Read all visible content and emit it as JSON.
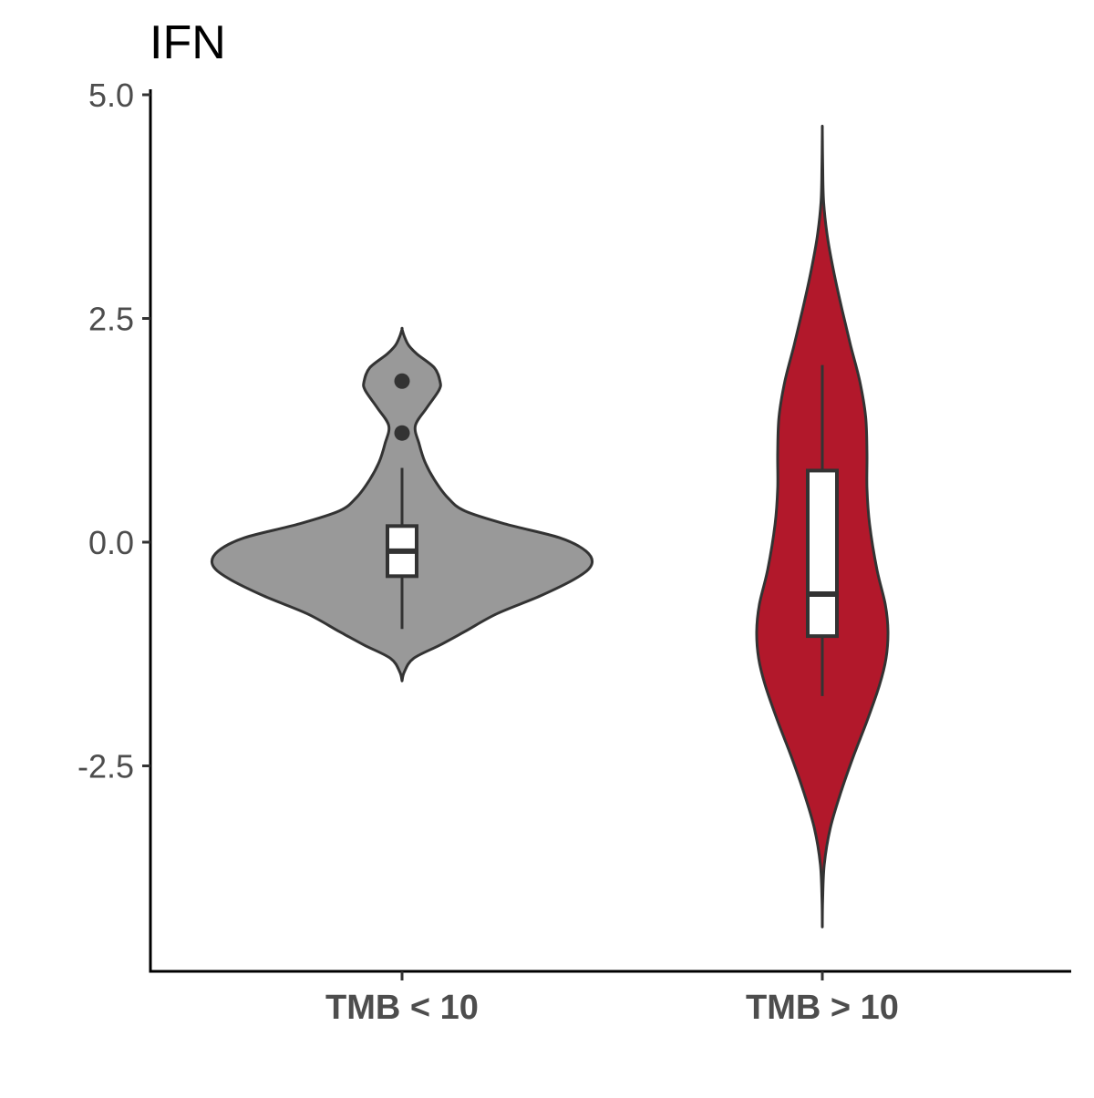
{
  "chart_data": {
    "type": "violin",
    "title": "IFN",
    "xlabel": "",
    "ylabel": "",
    "ylim": [
      -4.7,
      5.0
    ],
    "yticks": [
      5.0,
      2.5,
      0.0,
      -2.5
    ],
    "ytick_labels": [
      "5.0",
      "2.5",
      "0.0",
      "-2.5"
    ],
    "categories": [
      "TMB < 10",
      "TMB > 10"
    ],
    "grid": false,
    "legend": "none",
    "groups": [
      {
        "category": "TMB < 10",
        "fill": "#999999",
        "outline": "#333333",
        "violin_range": [
          -1.55,
          2.38
        ],
        "density_profile": [
          [
            -1.55,
            0.0
          ],
          [
            -1.45,
            0.012
          ],
          [
            -1.3,
            0.06
          ],
          [
            -1.15,
            0.2
          ],
          [
            -1.0,
            0.33
          ],
          [
            -0.8,
            0.5
          ],
          [
            -0.6,
            0.73
          ],
          [
            -0.4,
            0.92
          ],
          [
            -0.25,
            1.0
          ],
          [
            -0.1,
            0.97
          ],
          [
            0.05,
            0.83
          ],
          [
            0.2,
            0.55
          ],
          [
            0.35,
            0.33
          ],
          [
            0.5,
            0.24
          ],
          [
            0.7,
            0.17
          ],
          [
            0.9,
            0.12
          ],
          [
            1.1,
            0.09
          ],
          [
            1.3,
            0.07
          ],
          [
            1.5,
            0.13
          ],
          [
            1.7,
            0.195
          ],
          [
            1.8,
            0.2
          ],
          [
            1.95,
            0.17
          ],
          [
            2.1,
            0.08
          ],
          [
            2.2,
            0.035
          ],
          [
            2.3,
            0.012
          ],
          [
            2.38,
            0.0
          ]
        ],
        "box": {
          "q1": -0.38,
          "median": -0.1,
          "q3": 0.18,
          "whisker_low": -0.97,
          "whisker_high": 0.83
        },
        "outliers": [
          1.8,
          1.22
        ]
      },
      {
        "category": "TMB > 10",
        "fill": "#b2182b",
        "outline": "#333333",
        "violin_range": [
          -4.3,
          4.6
        ],
        "density_profile": [
          [
            -4.3,
            0.0
          ],
          [
            -4.0,
            0.005
          ],
          [
            -3.6,
            0.03
          ],
          [
            -3.2,
            0.12
          ],
          [
            -2.8,
            0.28
          ],
          [
            -2.4,
            0.47
          ],
          [
            -2.0,
            0.68
          ],
          [
            -1.6,
            0.87
          ],
          [
            -1.3,
            0.97
          ],
          [
            -1.0,
            1.0
          ],
          [
            -0.7,
            0.96
          ],
          [
            -0.3,
            0.83
          ],
          [
            0.2,
            0.72
          ],
          [
            0.6,
            0.68
          ],
          [
            1.0,
            0.68
          ],
          [
            1.4,
            0.66
          ],
          [
            1.8,
            0.57
          ],
          [
            2.2,
            0.43
          ],
          [
            2.6,
            0.3
          ],
          [
            3.0,
            0.18
          ],
          [
            3.4,
            0.08
          ],
          [
            3.8,
            0.02
          ],
          [
            4.2,
            0.006
          ],
          [
            4.6,
            0.0
          ]
        ],
        "box": {
          "q1": -1.05,
          "median": -0.58,
          "q3": 0.8,
          "whisker_low": -1.72,
          "whisker_high": 1.98
        },
        "outliers": []
      }
    ]
  }
}
